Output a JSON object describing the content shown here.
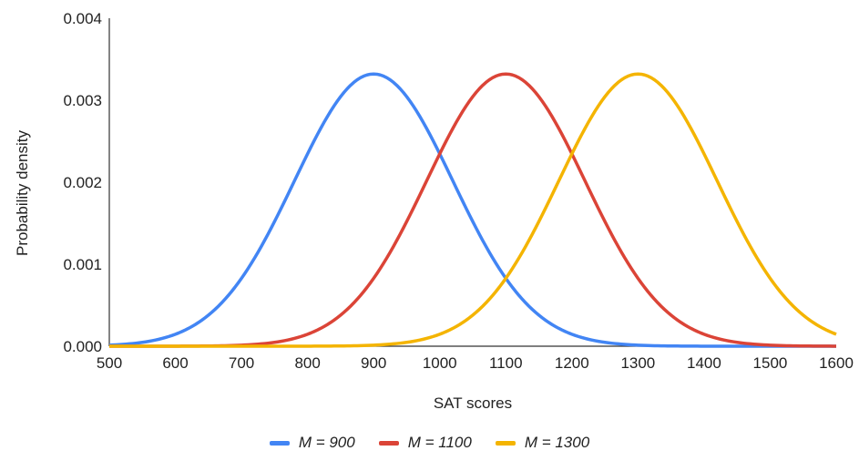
{
  "chart_data": {
    "type": "line",
    "xlabel": "SAT scores",
    "ylabel": "Probability density",
    "xlim": [
      500,
      1600
    ],
    "ylim": [
      0,
      0.004
    ],
    "x_ticks": [
      "500",
      "600",
      "700",
      "800",
      "900",
      "1000",
      "1100",
      "1200",
      "1300",
      "1400",
      "1500",
      "1600"
    ],
    "y_ticks": [
      "0.000",
      "0.001",
      "0.002",
      "0.003",
      "0.004"
    ],
    "grid": false,
    "legend_position": "bottom",
    "series": [
      {
        "name": "M = 900",
        "mean": 900,
        "sd": 120,
        "peak": 0.00332,
        "color": "#4285F4"
      },
      {
        "name": "M = 1100",
        "mean": 1100,
        "sd": 120,
        "peak": 0.00332,
        "color": "#DB4437"
      },
      {
        "name": "M = 1300",
        "mean": 1300,
        "sd": 120,
        "peak": 0.00332,
        "color": "#F4B400"
      }
    ]
  },
  "legend": {
    "items": [
      {
        "label": "M = 900",
        "color": "#4285F4"
      },
      {
        "label": "M = 1100",
        "color": "#DB4437"
      },
      {
        "label": "M = 1300",
        "color": "#F4B400"
      }
    ]
  }
}
